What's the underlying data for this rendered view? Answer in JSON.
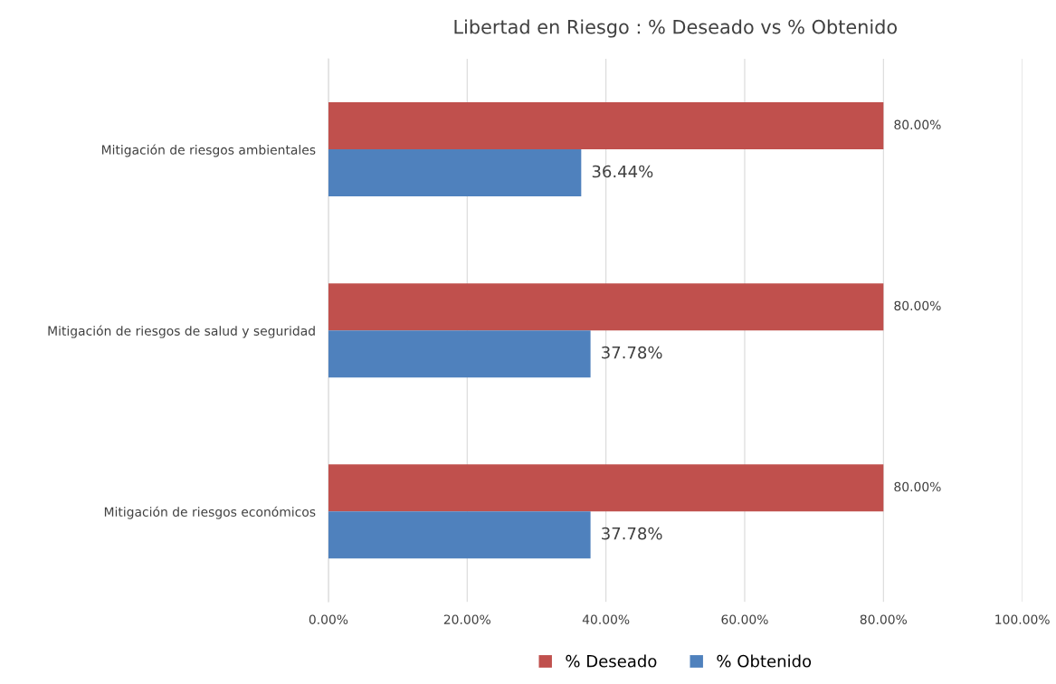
{
  "chart_data": {
    "type": "bar",
    "orientation": "horizontal",
    "title": "Libertad en Riesgo : % Deseado vs % Obtenido",
    "categories": [
      "Mitigación de riesgos ambientales",
      "Mitigación de riesgos de salud y seguridad",
      "Mitigación de riesgos económicos"
    ],
    "series": [
      {
        "name": "% Deseado",
        "color": "#c0504d",
        "values": [
          80,
          80,
          80
        ],
        "value_labels": [
          "80.00%",
          "80.00%",
          "80.00%"
        ]
      },
      {
        "name": "% Obtenido",
        "color": "#4f81bd",
        "values": [
          36.44,
          37.78,
          37.78
        ],
        "value_labels": [
          "36.44%",
          "37.78%",
          "37.78%"
        ]
      }
    ],
    "xlim": [
      0,
      100
    ],
    "xticks": [
      {
        "value": 0,
        "label": "0.00%"
      },
      {
        "value": 20,
        "label": "20.00%"
      },
      {
        "value": 40,
        "label": "40.00%"
      },
      {
        "value": 60,
        "label": "60.00%"
      },
      {
        "value": 80,
        "label": "80.00%"
      },
      {
        "value": 100,
        "label": "100.00%"
      }
    ],
    "grid": "x",
    "legend": "bottom"
  }
}
